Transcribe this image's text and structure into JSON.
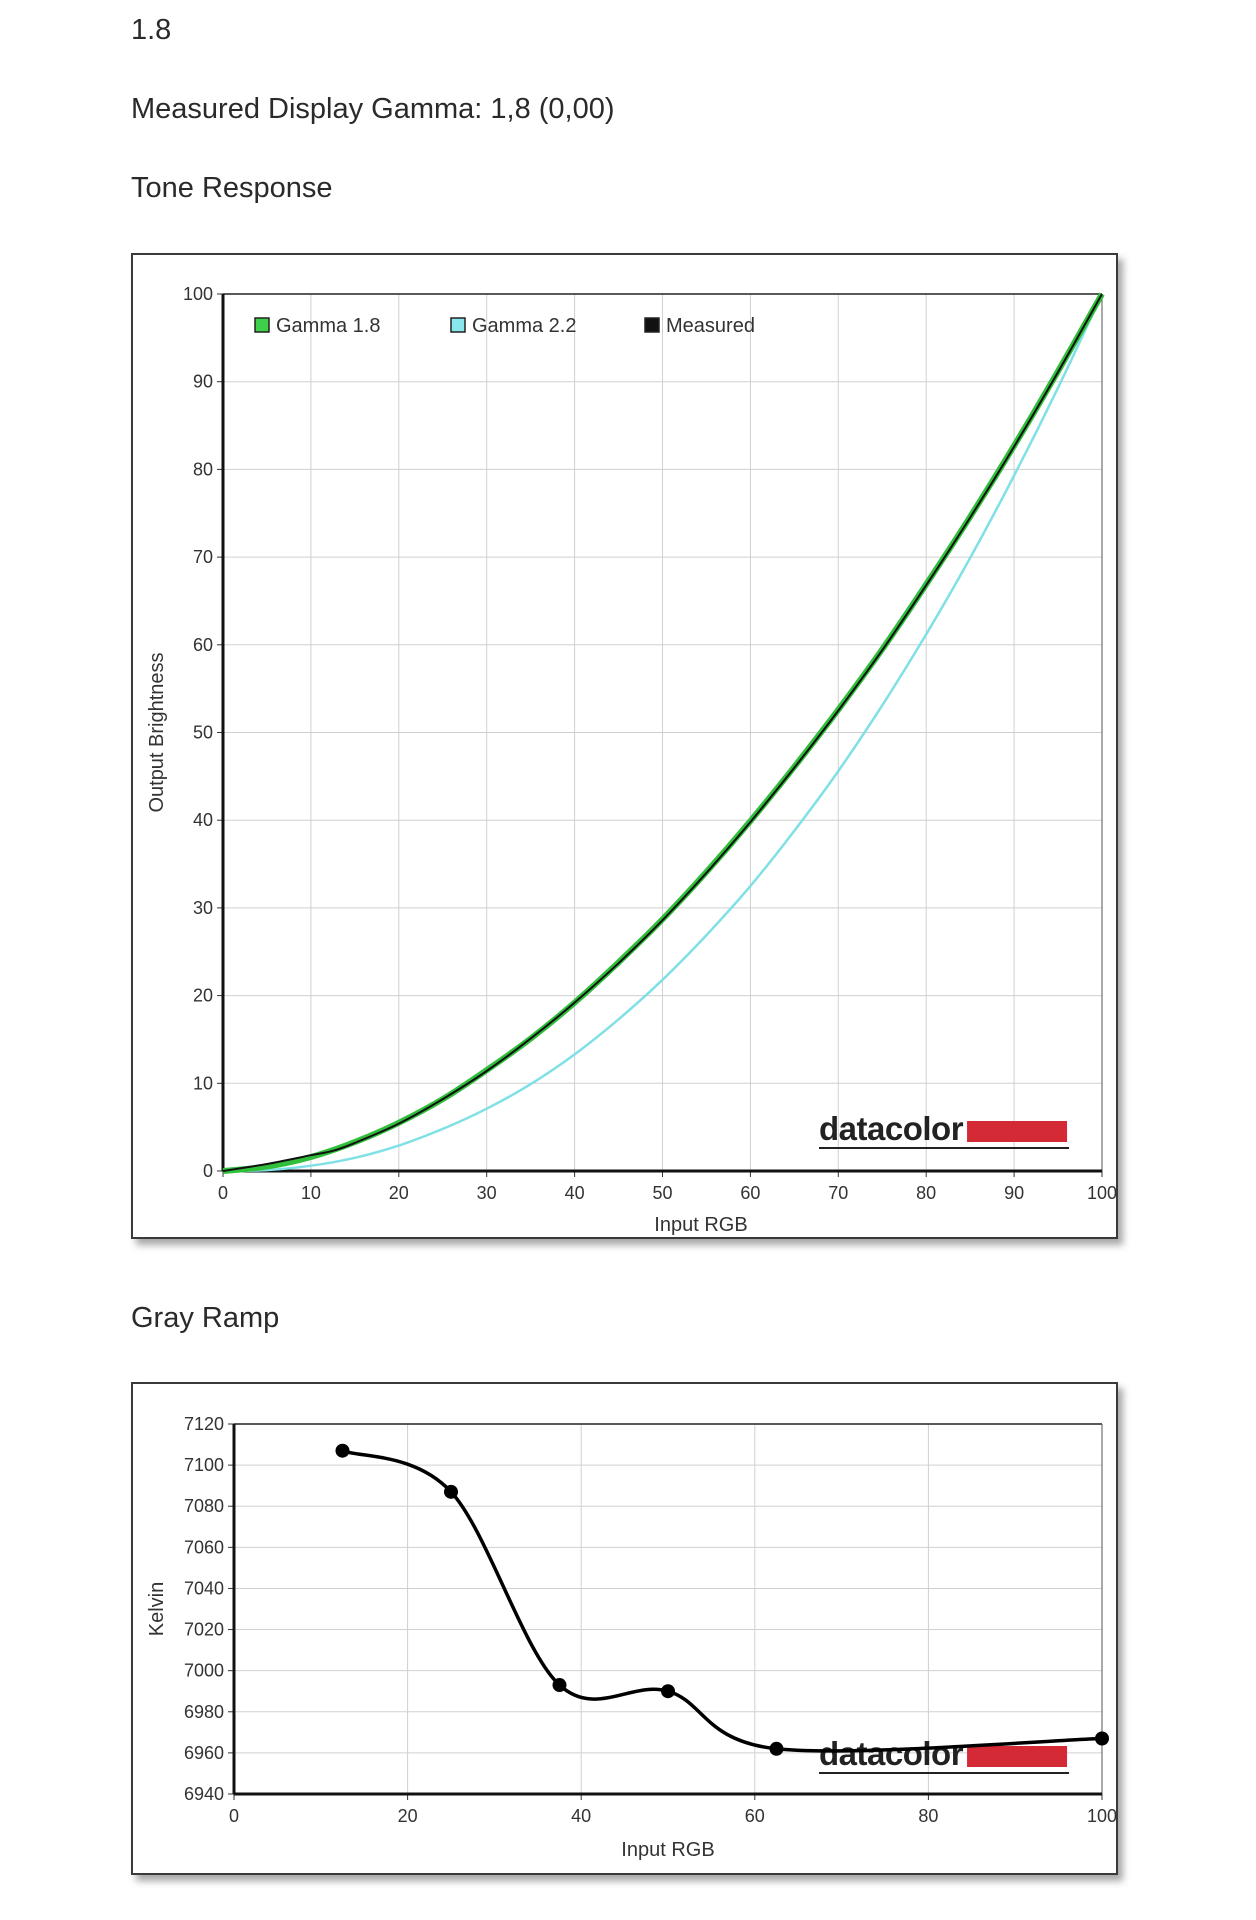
{
  "page": {
    "version_label": "1.8",
    "measured_gamma_text": "Measured Display Gamma: 1,8 (0,00)",
    "tone_heading": "Tone Response",
    "gray_heading": "Gray Ramp",
    "brand": "datacolor",
    "brand_color": "#d42a36"
  },
  "chart_data": [
    {
      "type": "line",
      "xlabel": "Input RGB",
      "ylabel": "Output Brightness",
      "xlim": [
        0,
        100
      ],
      "ylim": [
        0,
        100
      ],
      "xticks": [
        "0",
        "10",
        "20",
        "30",
        "40",
        "50",
        "60",
        "70",
        "80",
        "90",
        "100"
      ],
      "yticks": [
        "0",
        "10",
        "20",
        "30",
        "40",
        "50",
        "60",
        "70",
        "80",
        "90",
        "100"
      ],
      "grid": true,
      "legend_position": "top-left",
      "series": [
        {
          "name": "Gamma 1.8",
          "color": "#2fbf3a",
          "x": [
            0,
            5,
            10,
            15,
            20,
            25,
            30,
            35,
            40,
            45,
            50,
            55,
            60,
            65,
            70,
            75,
            80,
            85,
            90,
            95,
            100
          ],
          "y": [
            0,
            0.5,
            1.6,
            3.3,
            5.5,
            8.2,
            11.5,
            15.1,
            19.2,
            23.8,
            28.7,
            34.1,
            39.9,
            46.1,
            52.6,
            59.5,
            66.9,
            74.6,
            82.7,
            91.2,
            100
          ]
        },
        {
          "name": "Gamma 2.2",
          "color": "#7fe0e6",
          "x": [
            0,
            5,
            10,
            15,
            20,
            25,
            30,
            35,
            40,
            45,
            50,
            55,
            60,
            65,
            70,
            75,
            80,
            85,
            90,
            95,
            100
          ],
          "y": [
            0,
            0.1,
            0.6,
            1.5,
            2.9,
            4.8,
            7.1,
            9.9,
            13.3,
            17.3,
            21.8,
            26.9,
            32.5,
            38.8,
            45.6,
            53.1,
            61.2,
            69.9,
            79.3,
            89.3,
            100
          ]
        },
        {
          "name": "Measured",
          "color": "#111111",
          "x": [
            0,
            5,
            10,
            12.5,
            15,
            20,
            25,
            30,
            35,
            40,
            45,
            50,
            55,
            60,
            65,
            70,
            75,
            80,
            85,
            90,
            95,
            100
          ],
          "y": [
            0,
            0.8,
            1.8,
            2.3,
            3.2,
            5.4,
            8.2,
            11.4,
            15.1,
            19.2,
            23.7,
            28.6,
            34.0,
            39.8,
            46.0,
            52.5,
            59.4,
            66.8,
            74.5,
            82.6,
            91.1,
            100
          ]
        }
      ]
    },
    {
      "type": "line",
      "xlabel": "Input RGB",
      "ylabel": "Kelvin",
      "xlim": [
        0,
        100
      ],
      "ylim": [
        6940,
        7120
      ],
      "xticks": [
        "0",
        "20",
        "40",
        "60",
        "80",
        "100"
      ],
      "yticks": [
        "6940",
        "6960",
        "6980",
        "7000",
        "7020",
        "7040",
        "7060",
        "7080",
        "7100",
        "7120"
      ],
      "grid": true,
      "series": [
        {
          "name": "",
          "color": "#000000",
          "x": [
            12.5,
            25,
            37.5,
            50,
            62.5,
            100
          ],
          "y": [
            7107,
            7087,
            6993,
            6990,
            6962,
            6967
          ]
        }
      ]
    }
  ]
}
